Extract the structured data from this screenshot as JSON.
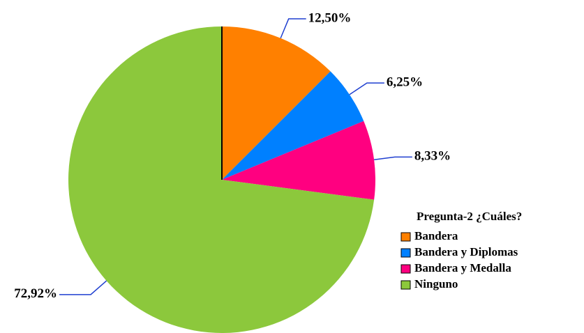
{
  "chart_data": {
    "type": "pie",
    "categories": [
      "Bandera",
      "Bandera y Diplomas",
      "Bandera y Medalla",
      "Ninguno"
    ],
    "values": [
      12.5,
      6.25,
      8.33,
      72.92
    ],
    "value_labels": [
      "12,50%",
      "6,25%",
      "8,33%",
      "72,92%"
    ],
    "colors": [
      "#ff8000",
      "#0080ff",
      "#ff0080",
      "#8cc83c"
    ],
    "legend_title": "Pregunta-2 ¿Cuáles?",
    "legend": "lower right"
  }
}
